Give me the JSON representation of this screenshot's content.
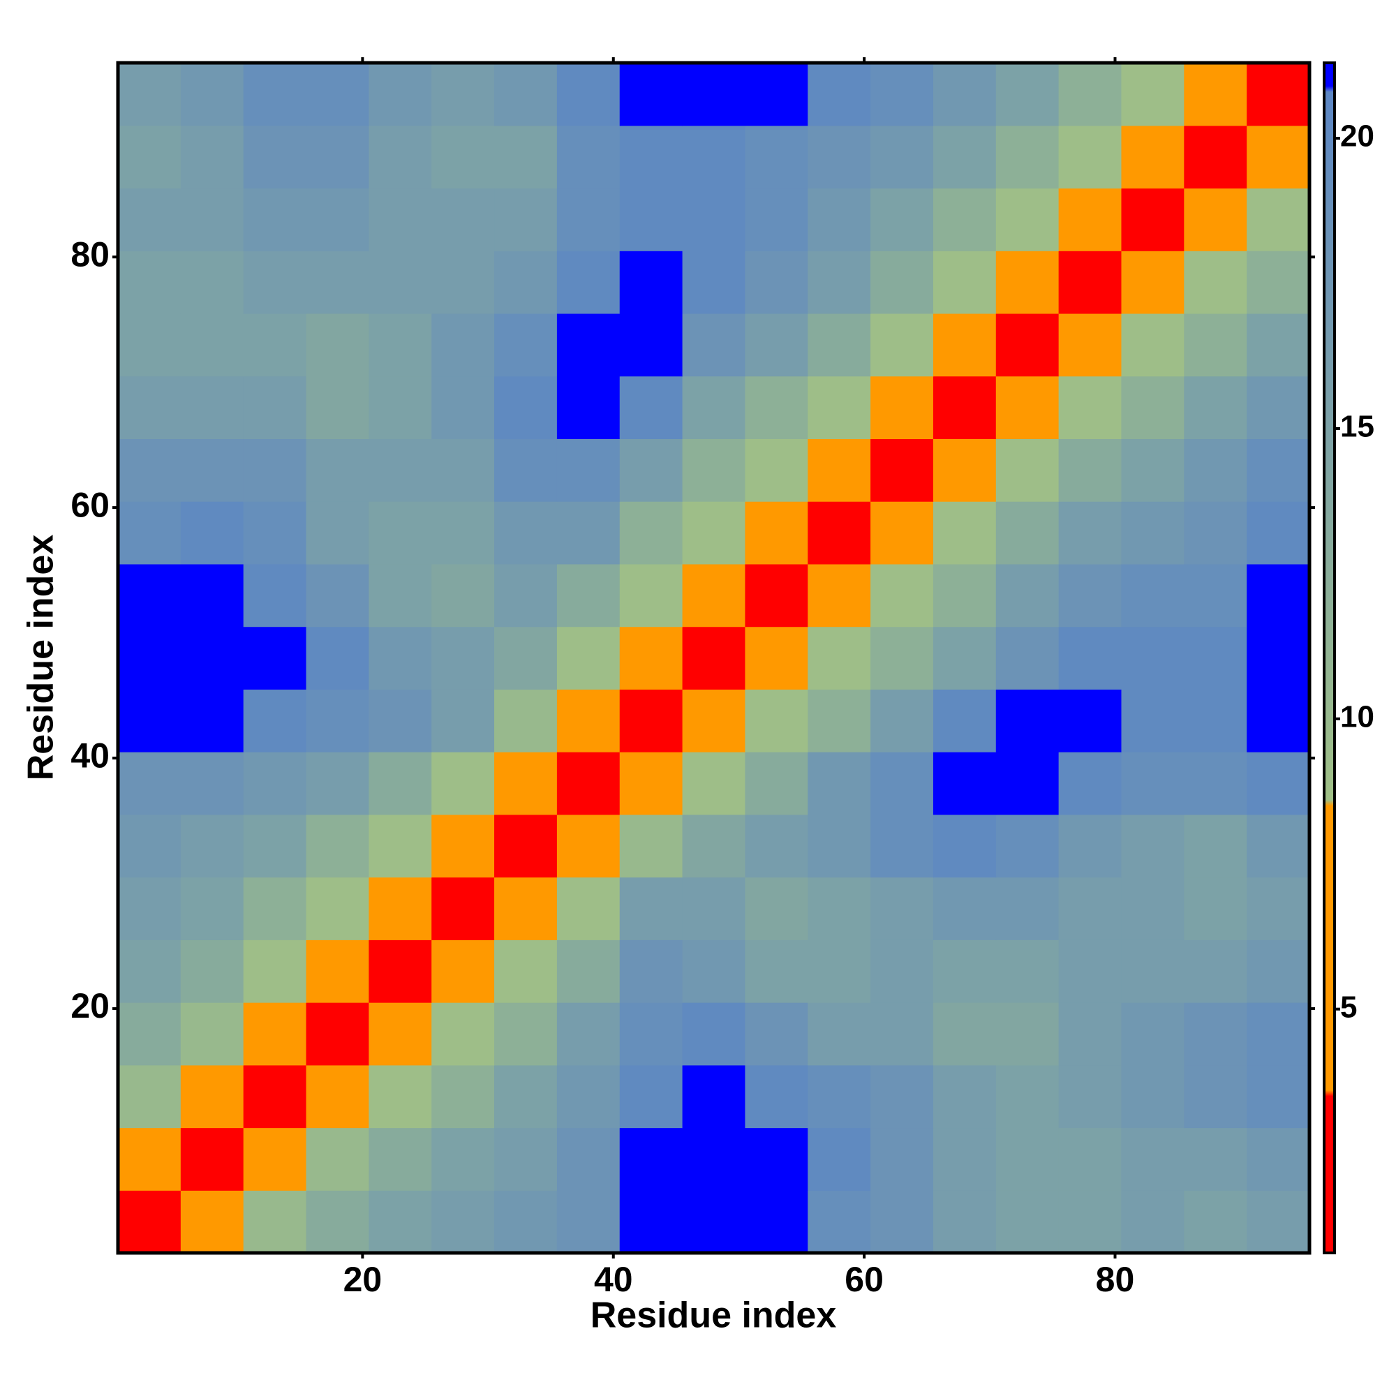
{
  "chart_data": {
    "type": "heatmap",
    "x_label": "Residue index",
    "y_label": "Residue index",
    "xlim": [
      0.5,
      95.5
    ],
    "ylim": [
      0.5,
      95.5
    ],
    "xticks": [
      20,
      40,
      60,
      80
    ],
    "yticks": [
      20,
      40,
      60,
      80
    ],
    "x": [
      3,
      8,
      13,
      18,
      23,
      28,
      33,
      38,
      43,
      48,
      53,
      58,
      63,
      68,
      73,
      78,
      83,
      88,
      93
    ],
    "y": [
      3,
      8,
      13,
      18,
      23,
      28,
      33,
      38,
      43,
      48,
      53,
      58,
      63,
      68,
      73,
      78,
      83,
      88,
      93
    ],
    "z": [
      [
        2,
        6,
        10,
        13,
        15,
        16,
        17,
        18,
        21,
        21,
        21,
        19,
        18,
        16,
        15,
        15,
        16,
        15,
        16
      ],
      [
        6,
        2,
        6,
        10,
        13,
        15,
        16,
        18,
        21,
        21,
        21,
        20,
        18,
        16,
        15,
        15,
        16,
        16,
        17
      ],
      [
        10,
        6,
        2,
        6,
        9,
        12,
        15,
        17,
        20,
        21,
        20,
        19,
        18,
        16,
        15,
        16,
        17,
        18,
        19
      ],
      [
        13,
        10,
        6,
        2,
        6,
        9,
        12,
        16,
        19,
        20,
        18,
        16,
        16,
        14,
        14,
        16,
        17,
        18,
        19
      ],
      [
        15,
        13,
        9,
        6,
        2,
        6,
        9,
        13,
        18,
        17,
        15,
        15,
        16,
        15,
        15,
        16,
        16,
        16,
        17
      ],
      [
        16,
        15,
        12,
        9,
        6,
        2,
        6,
        9,
        16,
        16,
        14,
        15,
        16,
        17,
        17,
        16,
        16,
        15,
        16
      ],
      [
        17,
        16,
        15,
        12,
        9,
        6,
        2,
        6,
        10,
        14,
        16,
        17,
        19,
        20,
        19,
        17,
        16,
        15,
        17
      ],
      [
        18,
        18,
        17,
        16,
        13,
        9,
        6,
        2,
        6,
        9,
        13,
        17,
        19,
        21,
        21,
        20,
        19,
        19,
        20
      ],
      [
        21,
        21,
        20,
        19,
        18,
        16,
        10,
        6,
        2,
        6,
        9,
        12,
        16,
        20,
        21,
        21,
        20,
        20,
        21
      ],
      [
        21,
        21,
        21,
        20,
        17,
        16,
        14,
        9,
        6,
        2,
        6,
        9,
        12,
        15,
        18,
        20,
        20,
        20,
        21
      ],
      [
        21,
        21,
        20,
        18,
        15,
        14,
        16,
        13,
        9,
        6,
        2,
        6,
        9,
        12,
        16,
        18,
        19,
        19,
        21
      ],
      [
        19,
        20,
        19,
        16,
        15,
        15,
        17,
        17,
        12,
        9,
        6,
        2,
        6,
        9,
        13,
        16,
        17,
        18,
        20
      ],
      [
        18,
        18,
        18,
        16,
        16,
        16,
        19,
        19,
        16,
        12,
        9,
        6,
        2,
        6,
        9,
        13,
        15,
        17,
        19
      ],
      [
        16,
        16,
        16,
        14,
        15,
        17,
        20,
        21,
        20,
        15,
        12,
        9,
        6,
        2,
        6,
        9,
        12,
        15,
        17
      ],
      [
        15,
        15,
        15,
        14,
        15,
        17,
        19,
        21,
        21,
        18,
        16,
        13,
        9,
        6,
        2,
        6,
        9,
        12,
        15
      ],
      [
        15,
        15,
        16,
        16,
        16,
        16,
        17,
        20,
        21,
        20,
        18,
        16,
        13,
        9,
        6,
        2,
        6,
        9,
        12
      ],
      [
        16,
        16,
        17,
        17,
        16,
        16,
        16,
        19,
        20,
        20,
        19,
        17,
        15,
        12,
        9,
        6,
        2,
        6,
        9
      ],
      [
        15,
        16,
        18,
        18,
        16,
        15,
        15,
        19,
        20,
        20,
        19,
        18,
        17,
        15,
        12,
        9,
        6,
        2,
        6
      ],
      [
        16,
        17,
        19,
        19,
        17,
        16,
        17,
        20,
        21,
        21,
        21,
        20,
        19,
        17,
        15,
        12,
        9,
        6,
        2
      ]
    ],
    "zlim": [
      0.8,
      21.3
    ],
    "colorbar_ticks": [
      5,
      10,
      15,
      20
    ],
    "colorscale": [
      {
        "value": 0.8,
        "color": "#ff0000"
      },
      {
        "value": 3.5,
        "color": "#ff0000"
      },
      {
        "value": 3.6,
        "color": "#ff9900"
      },
      {
        "value": 8.5,
        "color": "#ff9900"
      },
      {
        "value": 8.6,
        "color": "#a0c086"
      },
      {
        "value": 20.8,
        "color": "#5c86c4"
      },
      {
        "value": 20.9,
        "color": "#0000ff"
      },
      {
        "value": 21.3,
        "color": "#0000ff"
      }
    ]
  }
}
